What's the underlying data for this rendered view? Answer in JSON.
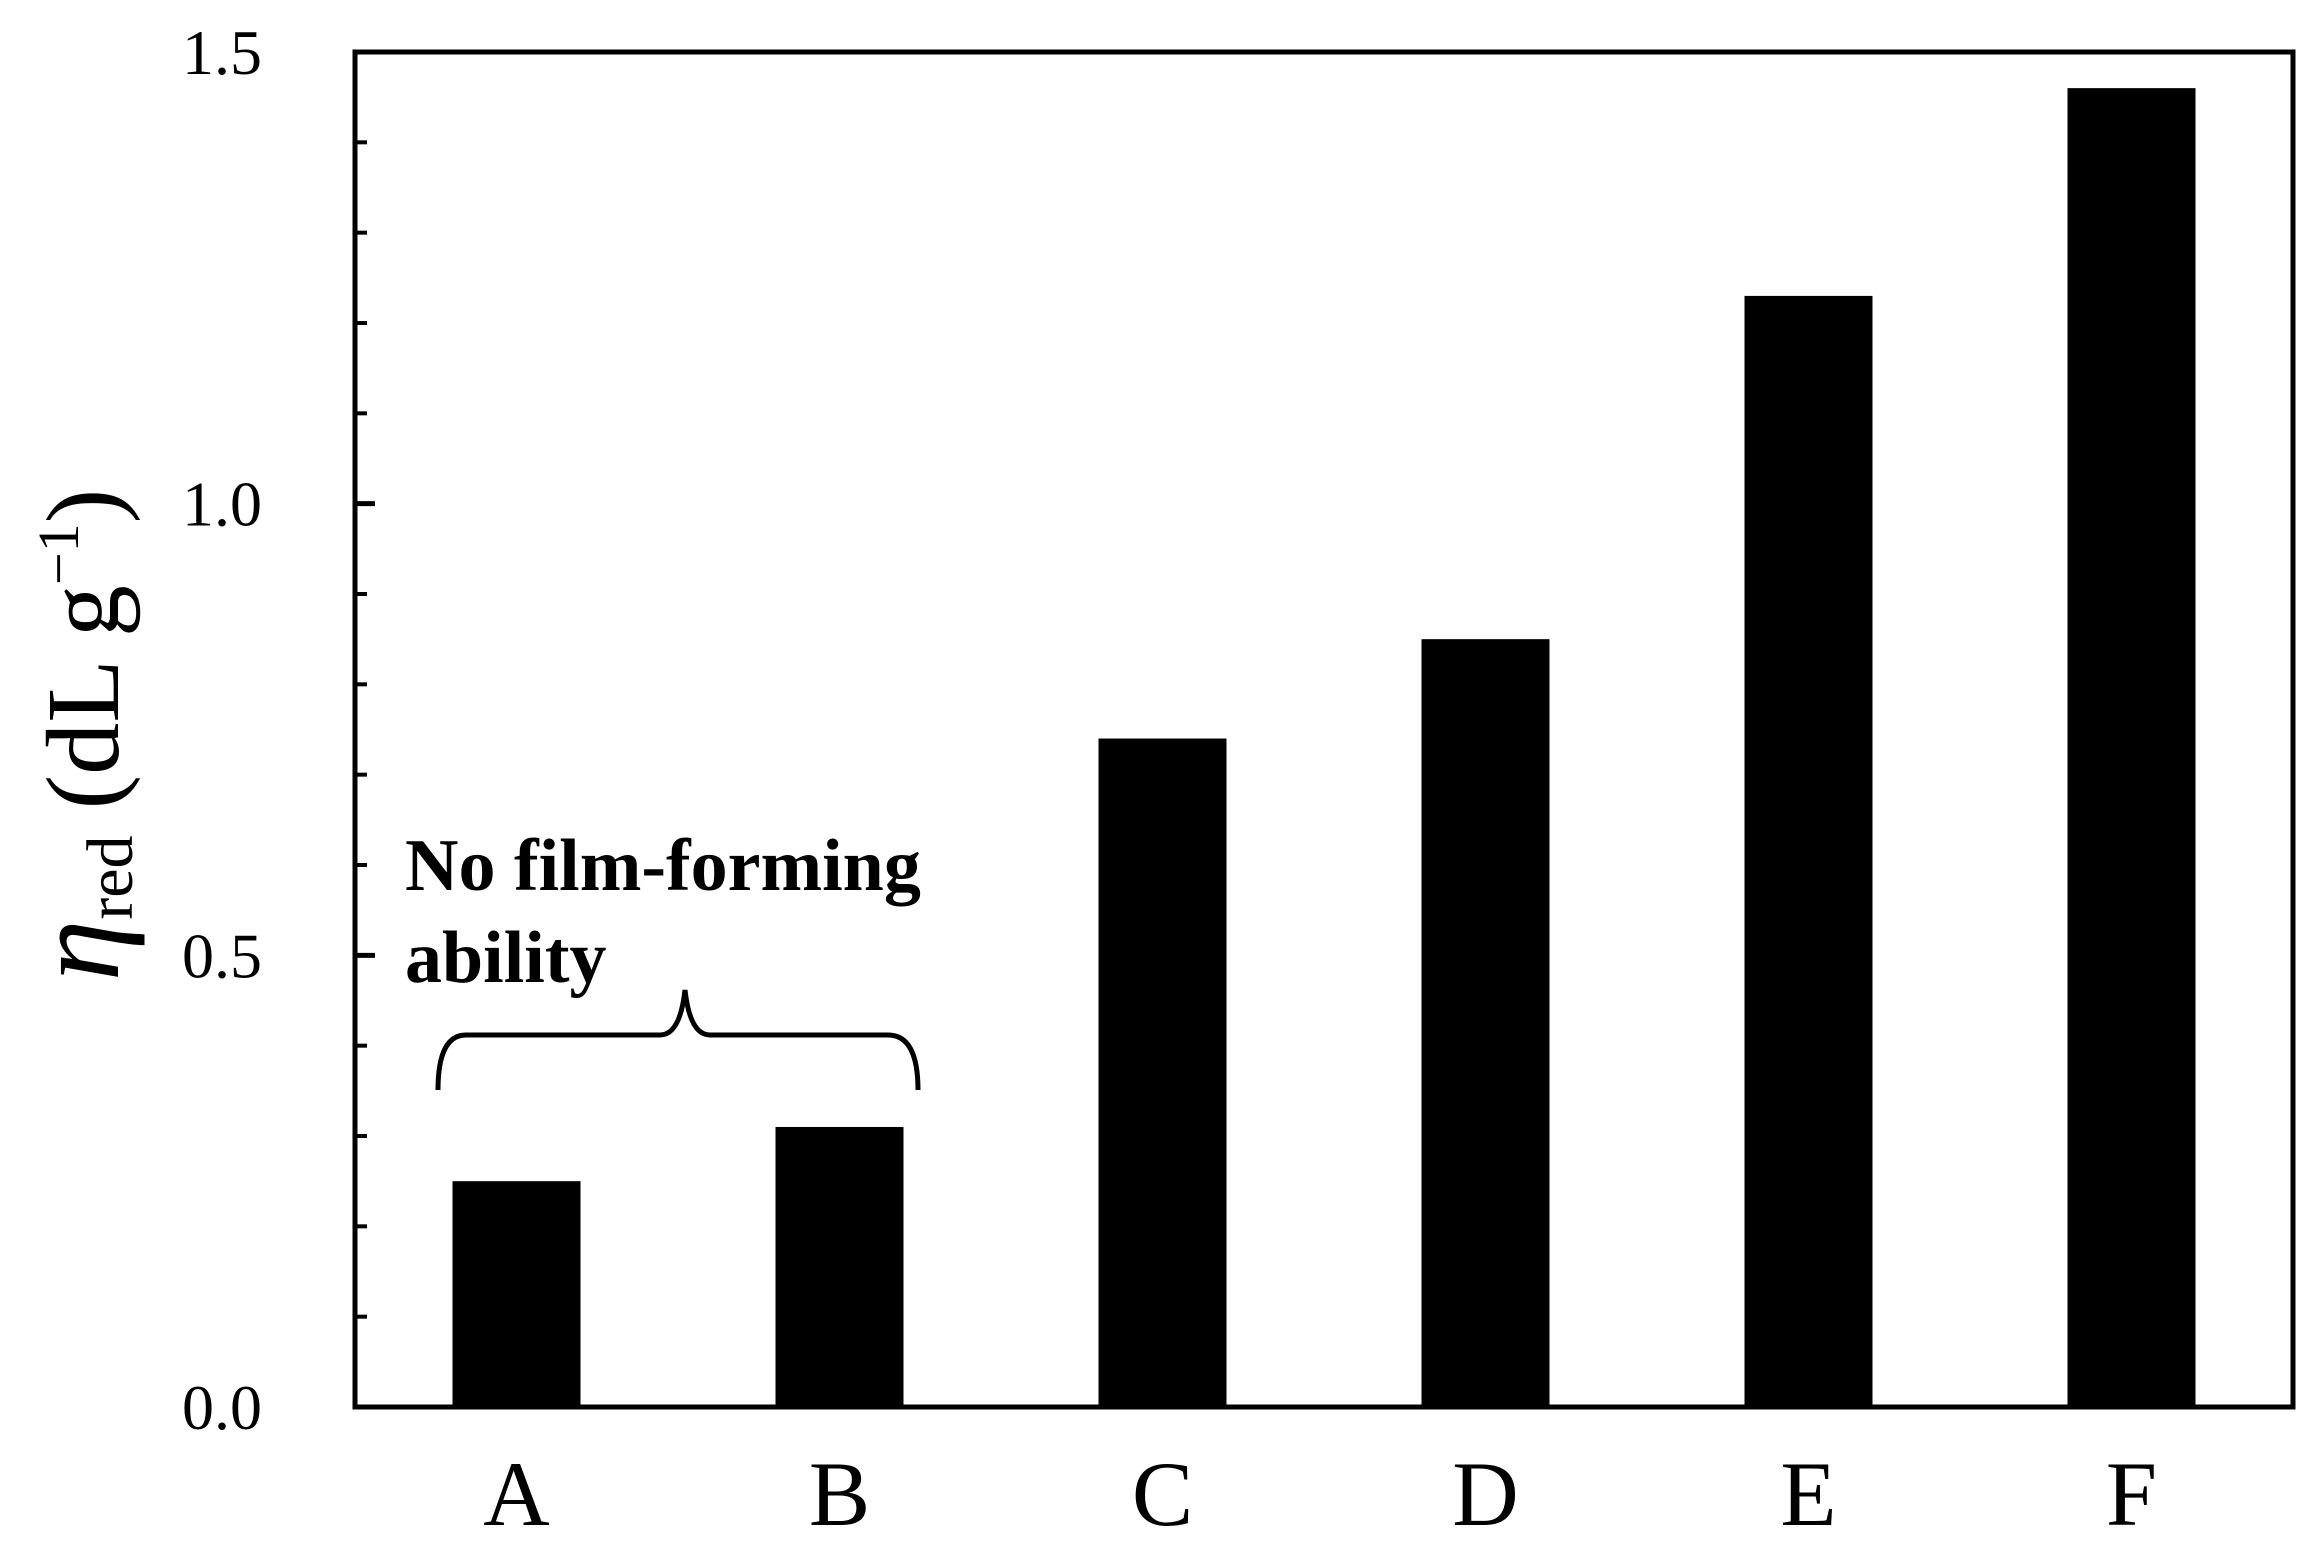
{
  "chart_data": {
    "type": "bar",
    "categories": [
      "A",
      "B",
      "C",
      "D",
      "E",
      "F"
    ],
    "values": [
      0.25,
      0.31,
      0.74,
      0.85,
      1.23,
      1.46
    ],
    "title": "",
    "xlabel": "",
    "ylabel": {
      "symbol": "η",
      "subscript": "red",
      "unit_prefix": " (dL g",
      "unit_sup": "−1",
      "unit_suffix": ")"
    },
    "ylim": [
      0,
      1.5
    ],
    "major_ticks": [
      0.0,
      0.5,
      1.0,
      1.5
    ],
    "tick_labels": [
      "0.0",
      "0.5",
      "1.0",
      "1.5"
    ],
    "minor_tick_step": 0.1,
    "grid": false,
    "legend": "none",
    "bar_color": "#000000",
    "annotation": {
      "lines": [
        "No film-forming",
        "ability"
      ],
      "spans_categories": [
        "A",
        "B"
      ]
    }
  }
}
